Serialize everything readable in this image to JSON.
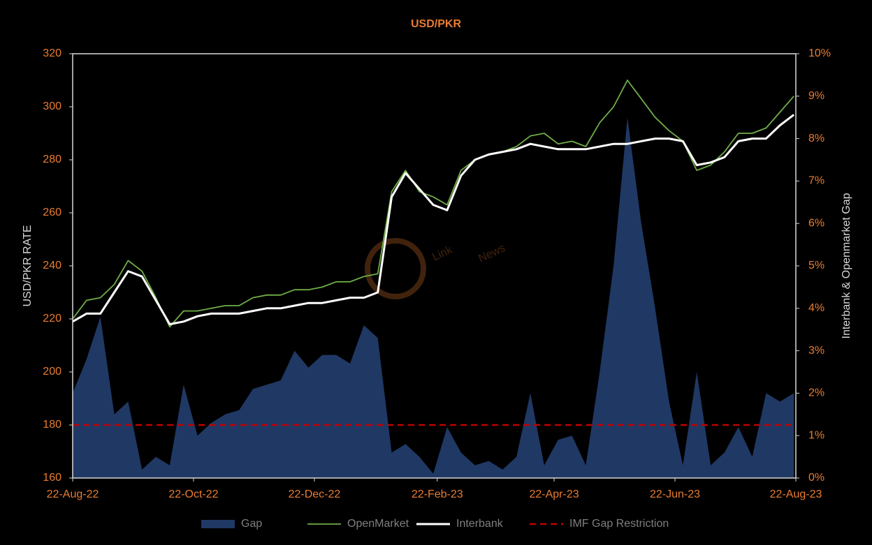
{
  "chart_data": {
    "type": "line",
    "title": "USD/PKR",
    "ylabel": "USD/PKR RATE",
    "y2label": "Interbank & Openmarket Gap",
    "watermark": [
      "Link",
      "News"
    ],
    "x": [
      "2022-08-22",
      "2022-08-29",
      "2022-09-05",
      "2022-09-12",
      "2022-09-19",
      "2022-09-26",
      "2022-10-03",
      "2022-10-10",
      "2022-10-17",
      "2022-10-24",
      "2022-10-31",
      "2022-11-07",
      "2022-11-14",
      "2022-11-21",
      "2022-11-28",
      "2022-12-05",
      "2022-12-12",
      "2022-12-19",
      "2022-12-26",
      "2023-01-02",
      "2023-01-09",
      "2023-01-16",
      "2023-01-23",
      "2023-01-30",
      "2023-02-06",
      "2023-02-13",
      "2023-02-20",
      "2023-02-27",
      "2023-03-06",
      "2023-03-13",
      "2023-03-20",
      "2023-03-27",
      "2023-04-03",
      "2023-04-10",
      "2023-04-17",
      "2023-04-24",
      "2023-05-01",
      "2023-05-08",
      "2023-05-15",
      "2023-05-22",
      "2023-05-29",
      "2023-06-05",
      "2023-06-12",
      "2023-06-19",
      "2023-06-26",
      "2023-07-03",
      "2023-07-10",
      "2023-07-17",
      "2023-07-24",
      "2023-07-31",
      "2023-08-07",
      "2023-08-14",
      "2023-08-21"
    ],
    "xlim": [
      "2022-08-22",
      "2023-08-22"
    ],
    "xticks": [
      {
        "value": "2022-08-22",
        "label": "22-Aug-22"
      },
      {
        "value": "2022-10-22",
        "label": "22-Oct-22"
      },
      {
        "value": "2022-12-22",
        "label": "22-Dec-22"
      },
      {
        "value": "2023-02-22",
        "label": "22-Feb-23"
      },
      {
        "value": "2023-04-22",
        "label": "22-Apr-23"
      },
      {
        "value": "2023-06-22",
        "label": "22-Jun-23"
      },
      {
        "value": "2023-08-22",
        "label": "22-Aug-23"
      }
    ],
    "ylim": [
      160,
      320
    ],
    "yticks": [
      160,
      180,
      200,
      220,
      240,
      260,
      280,
      300,
      320
    ],
    "y2lim": [
      0,
      10
    ],
    "y2ticks": [
      {
        "value": 0,
        "label": "0%"
      },
      {
        "value": 1,
        "label": "1%"
      },
      {
        "value": 2,
        "label": "2%"
      },
      {
        "value": 3,
        "label": "3%"
      },
      {
        "value": 4,
        "label": "4%"
      },
      {
        "value": 5,
        "label": "5%"
      },
      {
        "value": 6,
        "label": "6%"
      },
      {
        "value": 7,
        "label": "7%"
      },
      {
        "value": 8,
        "label": "8%"
      },
      {
        "value": 9,
        "label": "9%"
      },
      {
        "value": 10,
        "label": "10%"
      }
    ],
    "series": [
      {
        "name": "Gap",
        "type": "area",
        "axis": "y2",
        "color": "#203864",
        "values": [
          2.0,
          2.8,
          3.8,
          1.5,
          1.8,
          0.2,
          0.5,
          0.3,
          2.2,
          1.0,
          1.3,
          1.5,
          1.6,
          2.1,
          2.2,
          2.3,
          3.0,
          2.6,
          2.9,
          2.9,
          2.7,
          3.6,
          3.3,
          0.6,
          0.8,
          0.5,
          0.1,
          1.2,
          0.6,
          0.3,
          0.4,
          0.2,
          0.5,
          2.0,
          0.3,
          0.9,
          1.0,
          0.3,
          2.5,
          5.0,
          8.5,
          6.0,
          4.0,
          1.8,
          0.3,
          2.5,
          0.3,
          0.6,
          1.2,
          0.5,
          2.0,
          1.8,
          2.0
        ]
      },
      {
        "name": "OpenMarket",
        "type": "line",
        "color": "#70ad47",
        "values": [
          220,
          227,
          228,
          233,
          242,
          238,
          228,
          217,
          223,
          223,
          224,
          225,
          225,
          228,
          229,
          229,
          231,
          231,
          232,
          234,
          234,
          236,
          237,
          268,
          276,
          268,
          266,
          263,
          276,
          280,
          282,
          283,
          285,
          289,
          290,
          286,
          287,
          285,
          294,
          300,
          310,
          303,
          296,
          291,
          287,
          276,
          278,
          283,
          290,
          290,
          292,
          298,
          304
        ]
      },
      {
        "name": "Interbank",
        "type": "line",
        "color": "#ffffff",
        "values": [
          219,
          222,
          222,
          230,
          238,
          236,
          227,
          218,
          219,
          221,
          222,
          222,
          222,
          223,
          224,
          224,
          225,
          226,
          226,
          227,
          228,
          228,
          230,
          266,
          275,
          269,
          263,
          261,
          274,
          280,
          282,
          283,
          284,
          286,
          285,
          284,
          284,
          284,
          285,
          286,
          286,
          287,
          288,
          288,
          287,
          278,
          279,
          281,
          287,
          288,
          288,
          293,
          297
        ]
      }
    ],
    "reference_line": {
      "name": "IMF Gap Restriction",
      "value": 1.25,
      "axis": "y2",
      "color": "#c00000"
    },
    "title_color": "#e97c30",
    "tick_color": "#e97c30",
    "axis_label_color": "#d9d9d9",
    "legend": "bottom"
  }
}
